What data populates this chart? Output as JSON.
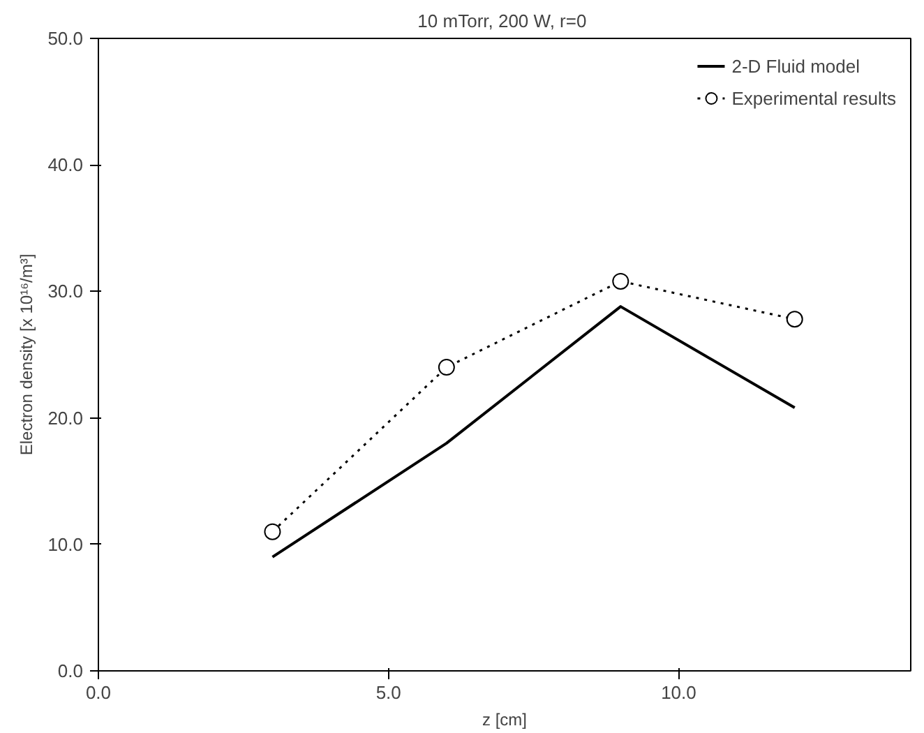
{
  "chart_data": {
    "type": "line",
    "title": "10 mTorr, 200 W,  r=0",
    "xlabel": "z [cm]",
    "ylabel": "Electron density [x 10¹⁶/m³]",
    "xlim": [
      0,
      14
    ],
    "xticks": [
      {
        "value": 0,
        "label": "0.0"
      },
      {
        "value": 5,
        "label": "5.0"
      },
      {
        "value": 10,
        "label": "10.0"
      }
    ],
    "ylim": [
      0,
      50
    ],
    "yticks": [
      {
        "value": 0,
        "label": "0.0"
      },
      {
        "value": 10,
        "label": "10.0"
      },
      {
        "value": 20,
        "label": "20.0"
      },
      {
        "value": 30,
        "label": "30.0"
      },
      {
        "value": 40,
        "label": "40.0"
      },
      {
        "value": 50,
        "label": "50.0"
      }
    ],
    "x": [
      3,
      6,
      9,
      12
    ],
    "grid": false,
    "legend": "top right",
    "series": [
      {
        "name": "2-D Fluid model",
        "color": "#000000",
        "values": [
          9.0,
          18.0,
          28.8,
          20.8
        ],
        "marker": "none",
        "line_style": "solid"
      },
      {
        "name": "Experimental results",
        "color": "#000000",
        "values": [
          11.0,
          24.0,
          30.8,
          27.8
        ],
        "marker": "circle",
        "line_style": "dotted"
      }
    ]
  }
}
